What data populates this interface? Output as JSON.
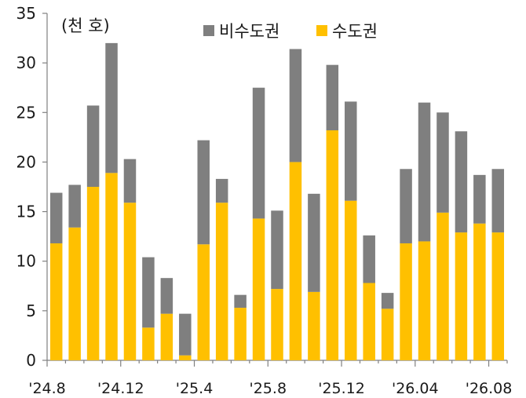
{
  "chart_data": {
    "type": "bar",
    "stacked": true,
    "unit_label": "(천 호)",
    "ylim": [
      0,
      35
    ],
    "y_ticks": [
      0,
      5,
      10,
      15,
      20,
      25,
      30,
      35
    ],
    "grid": false,
    "legend_position": "top",
    "x_tick_labels": [
      "'24.8",
      "'24.12",
      "'25.4",
      "'25.8",
      "'25.12",
      "'26.04",
      "'26.08"
    ],
    "x_tick_label_indices": [
      0,
      4,
      8,
      12,
      16,
      20,
      24
    ],
    "n_bars": 25,
    "series": [
      {
        "name": "수도권",
        "color": "#FFC000",
        "values": [
          11.8,
          13.4,
          17.5,
          18.9,
          15.9,
          3.3,
          4.7,
          0.5,
          11.7,
          15.9,
          5.3,
          14.3,
          7.2,
          20.0,
          6.9,
          23.2,
          16.1,
          7.8,
          5.2,
          11.8,
          12.0,
          14.9,
          12.9,
          13.8,
          12.9
        ]
      },
      {
        "name": "비수도권",
        "color": "#7F7F7F",
        "values": [
          5.1,
          4.3,
          8.2,
          13.1,
          4.4,
          7.1,
          3.6,
          4.2,
          10.5,
          2.4,
          1.3,
          13.2,
          7.9,
          11.4,
          9.9,
          6.6,
          10.0,
          4.8,
          1.6,
          7.5,
          14.0,
          10.1,
          10.2,
          4.9,
          6.4
        ]
      }
    ]
  }
}
